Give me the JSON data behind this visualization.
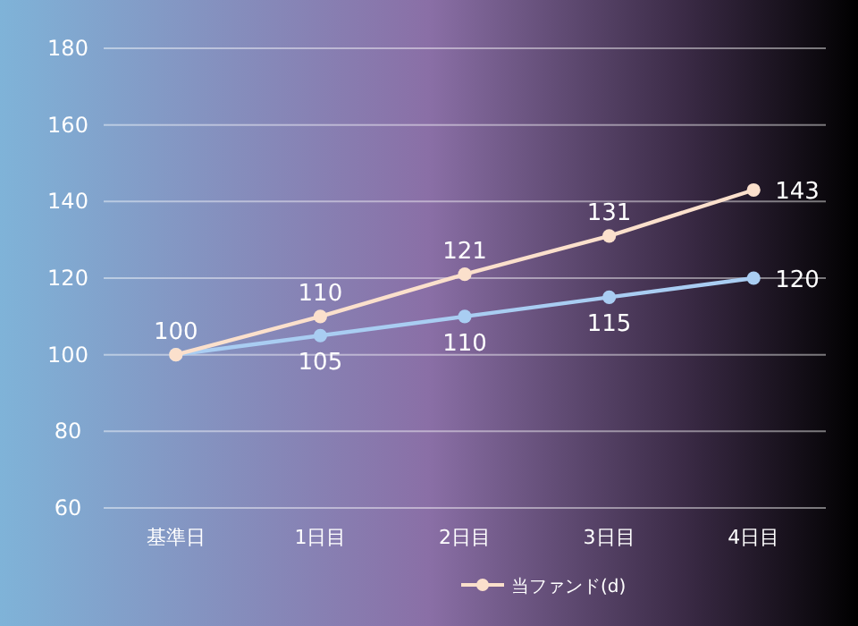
{
  "chart_data": {
    "type": "line",
    "categories": [
      "基準日",
      "1日目",
      "2日目",
      "3日目",
      "4日目"
    ],
    "series": [
      {
        "color": "#a9cdf2",
        "values": [
          100,
          105,
          110,
          115,
          120
        ],
        "value_labels": [
          null,
          "105",
          "110",
          "115",
          "120"
        ]
      },
      {
        "name": "当ファンド(d)",
        "color": "#fbe0cc",
        "values": [
          100,
          110,
          121,
          131,
          143
        ],
        "value_labels": [
          "100",
          "110",
          "121",
          "131",
          "143"
        ]
      }
    ],
    "ylim": [
      60,
      180
    ],
    "yticks": [
      60,
      80,
      100,
      120,
      140,
      160,
      180
    ],
    "grid": "y",
    "legend": "bottom",
    "marker": "circle",
    "line_style": "solid"
  }
}
